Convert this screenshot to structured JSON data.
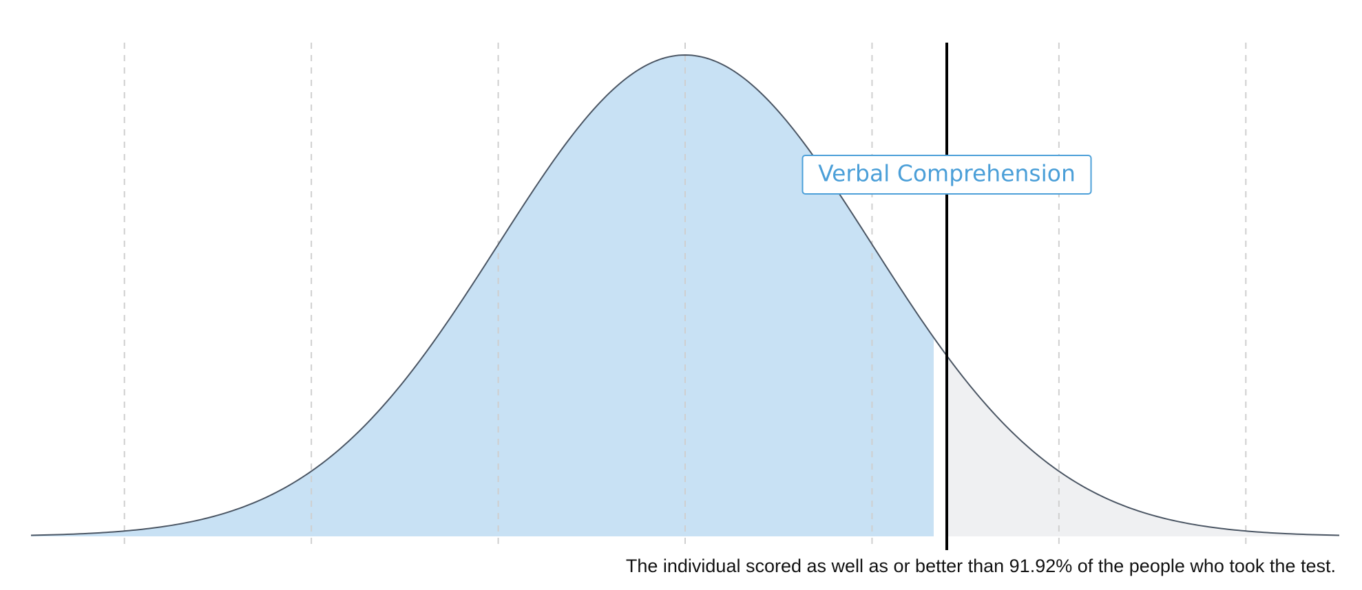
{
  "chart_data": {
    "type": "area",
    "title": "",
    "xlabel": "",
    "ylabel": "",
    "distribution": {
      "mean": 0,
      "sd": 1
    },
    "xlim": [
      -3.5,
      3.5
    ],
    "grid_x": [
      -3,
      -2,
      -1,
      0,
      1,
      2,
      3
    ],
    "grid": true,
    "score_z": 1.4,
    "percentile": 91.92,
    "label": "Verbal Comprehension",
    "colors": {
      "below": "#c8e1f4",
      "above": "#eff0f2",
      "curve": "#4a5563",
      "marker": "#000000",
      "label": "#4b9fd8"
    }
  },
  "caption": "The individual scored as well as or better than 91.92% of the people who took the test."
}
